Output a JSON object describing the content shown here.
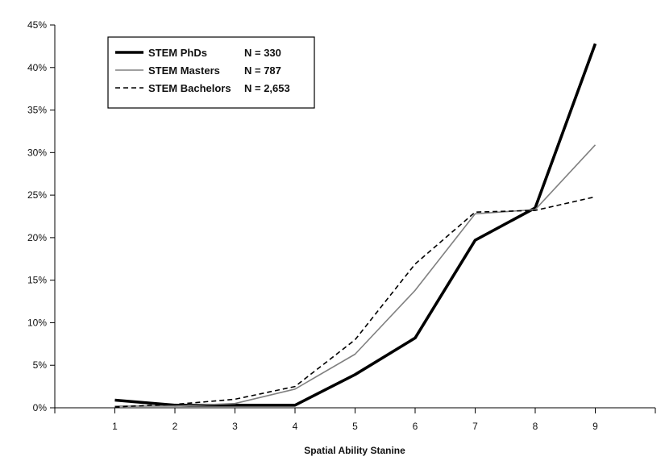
{
  "chart_data": {
    "type": "line",
    "title": "",
    "xlabel": "Spatial Ability Stanine",
    "ylabel": "",
    "x": [
      1,
      2,
      3,
      4,
      5,
      6,
      7,
      8,
      9
    ],
    "xlim": [
      0,
      10
    ],
    "ylim": [
      0,
      45
    ],
    "y_ticks": [
      "0%",
      "5%",
      "10%",
      "15%",
      "20%",
      "25%",
      "30%",
      "35%",
      "40%",
      "45%"
    ],
    "x_ticks": [
      "1",
      "2",
      "3",
      "4",
      "5",
      "6",
      "7",
      "8",
      "9"
    ],
    "grid": false,
    "legend_position": "top-left",
    "series": [
      {
        "name": "STEM PhDs",
        "n_label": "N = 330",
        "style": "solid-thick",
        "color": "#000000",
        "values": [
          0.9,
          0.3,
          0.3,
          0.3,
          3.9,
          8.2,
          19.7,
          23.5,
          42.8
        ]
      },
      {
        "name": "STEM Masters",
        "n_label": "N = 787",
        "style": "solid-thin",
        "color": "#808080",
        "values": [
          0.2,
          0.2,
          0.5,
          2.2,
          6.3,
          13.8,
          22.8,
          23.3,
          30.9
        ]
      },
      {
        "name": "STEM Bachelors",
        "n_label": "N = 2,653",
        "style": "dashed",
        "color": "#000000",
        "values": [
          0.1,
          0.4,
          1.0,
          2.5,
          8.0,
          16.9,
          23.0,
          23.2,
          24.8
        ]
      }
    ]
  }
}
